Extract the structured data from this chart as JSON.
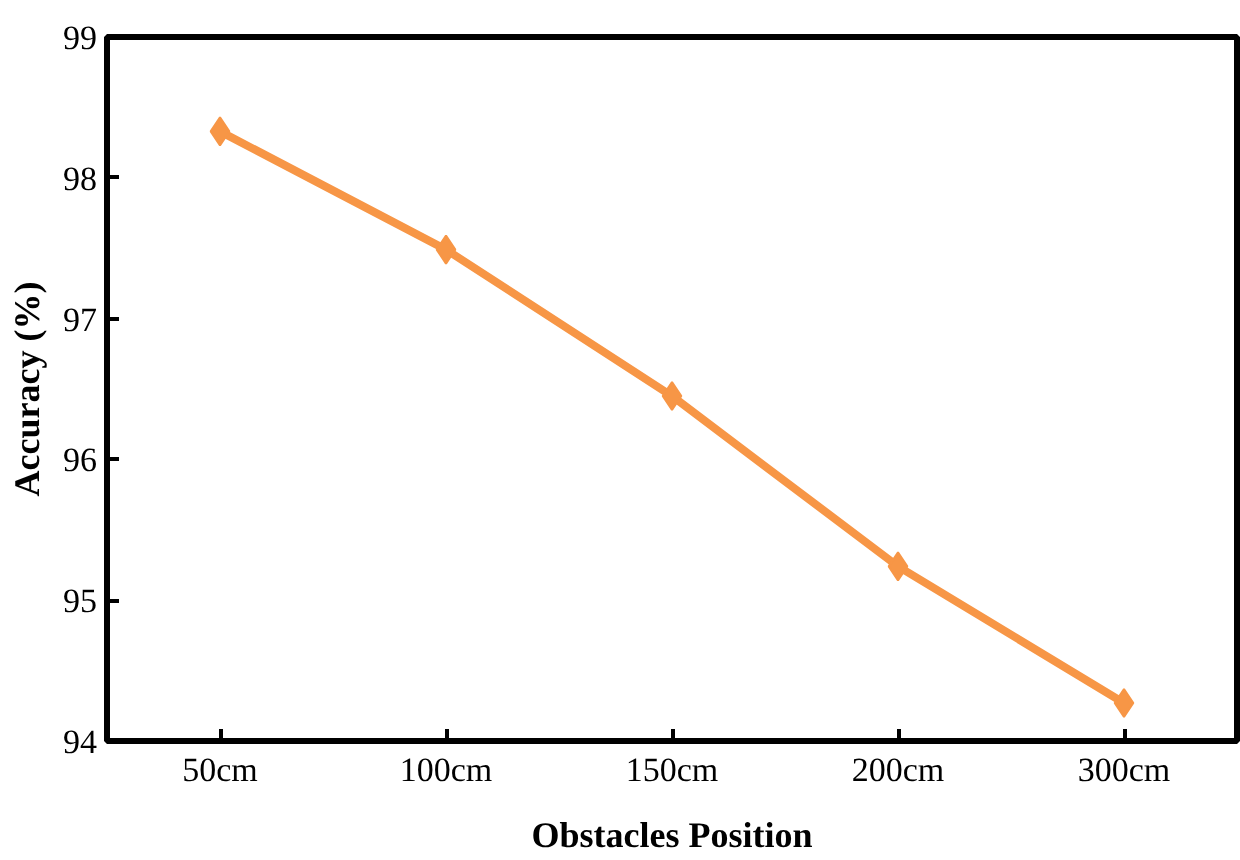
{
  "chart_data": {
    "type": "line",
    "xlabel": "Obstacles Position",
    "ylabel": "Accuracy (%)",
    "categories": [
      "50cm",
      "100cm",
      "150cm",
      "200cm",
      "300cm"
    ],
    "series": [
      {
        "color": "#f79646",
        "values": [
          98.33,
          97.49,
          96.45,
          95.24,
          94.27
        ]
      }
    ],
    "ylim": [
      94,
      99
    ],
    "yticks": [
      94,
      95,
      96,
      97,
      98,
      99
    ],
    "grid": false,
    "marker": "diamond",
    "line_style": "solid"
  }
}
